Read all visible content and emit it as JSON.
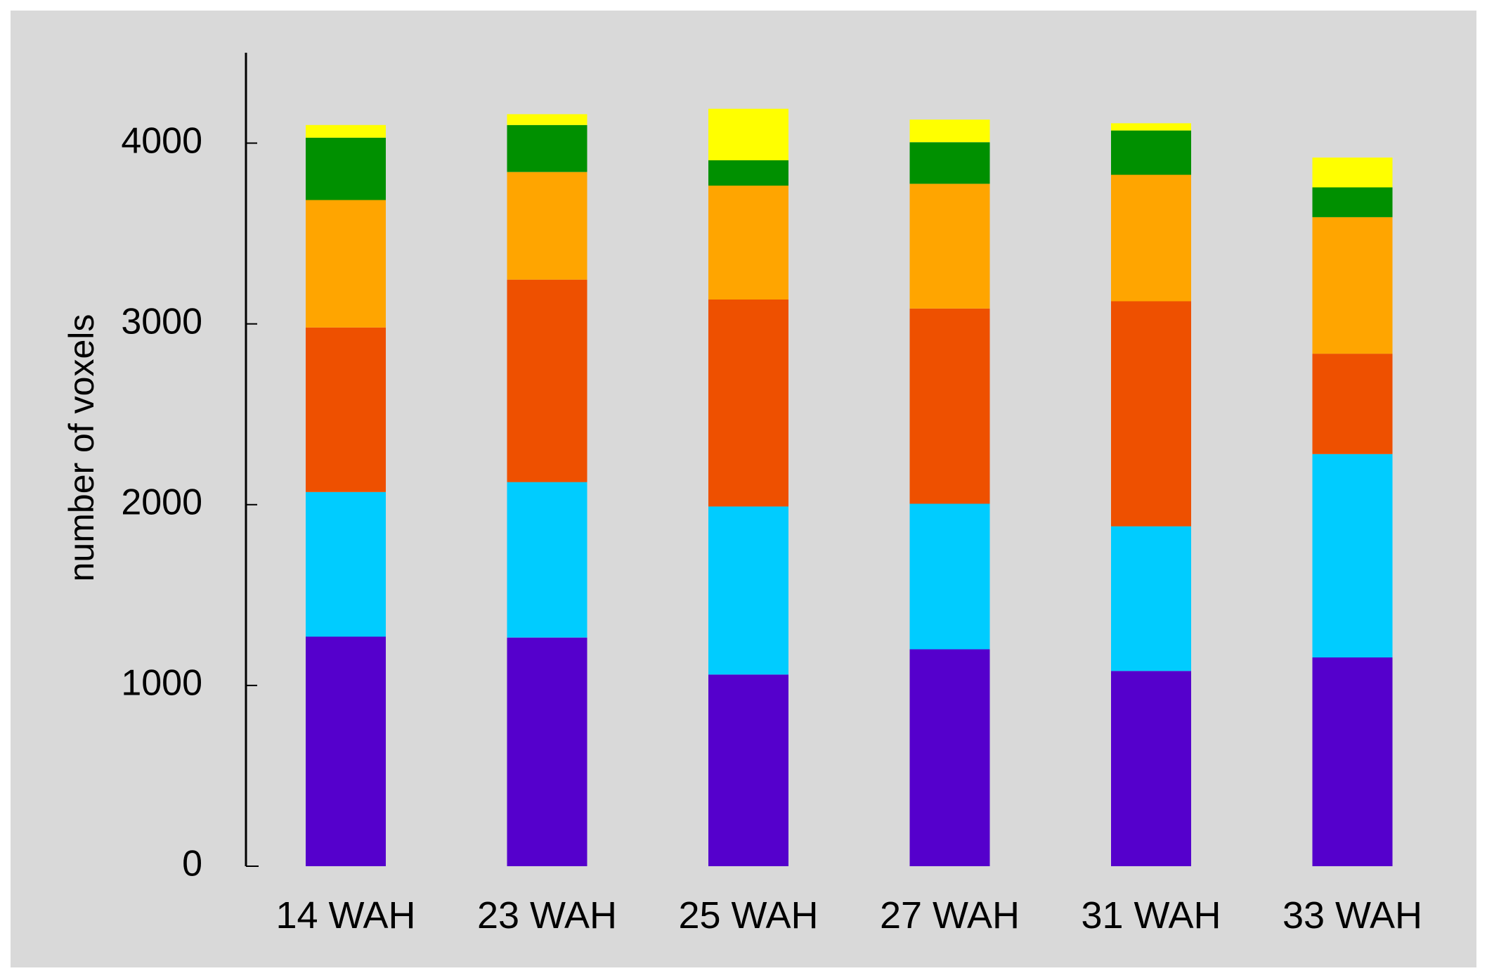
{
  "chart_data": {
    "type": "bar",
    "stacked": true,
    "title": "",
    "xlabel": "",
    "ylabel": "number of voxels",
    "ylim": [
      0,
      4500
    ],
    "yticks": [
      0,
      1000,
      2000,
      3000,
      4000
    ],
    "grid": false,
    "legend": "none",
    "background_color": "#d9d9d9",
    "categories": [
      "14 WAH",
      "23 WAH",
      "25 WAH",
      "27 WAH",
      "31 WAH",
      "33 WAH"
    ],
    "series": [
      {
        "color": "#5500cc",
        "values": [
          1270,
          1265,
          1060,
          1200,
          1080,
          1155
        ]
      },
      {
        "color": "#00ccff",
        "values": [
          800,
          860,
          930,
          805,
          800,
          1125
        ]
      },
      {
        "color": "#ee5000",
        "values": [
          910,
          1120,
          1145,
          1080,
          1245,
          555
        ]
      },
      {
        "color": "#ffa500",
        "values": [
          705,
          595,
          630,
          690,
          700,
          755
        ]
      },
      {
        "color": "#009000",
        "values": [
          345,
          260,
          140,
          230,
          245,
          165
        ]
      },
      {
        "color": "#ffff00",
        "values": [
          70,
          60,
          285,
          125,
          40,
          165
        ]
      }
    ]
  }
}
